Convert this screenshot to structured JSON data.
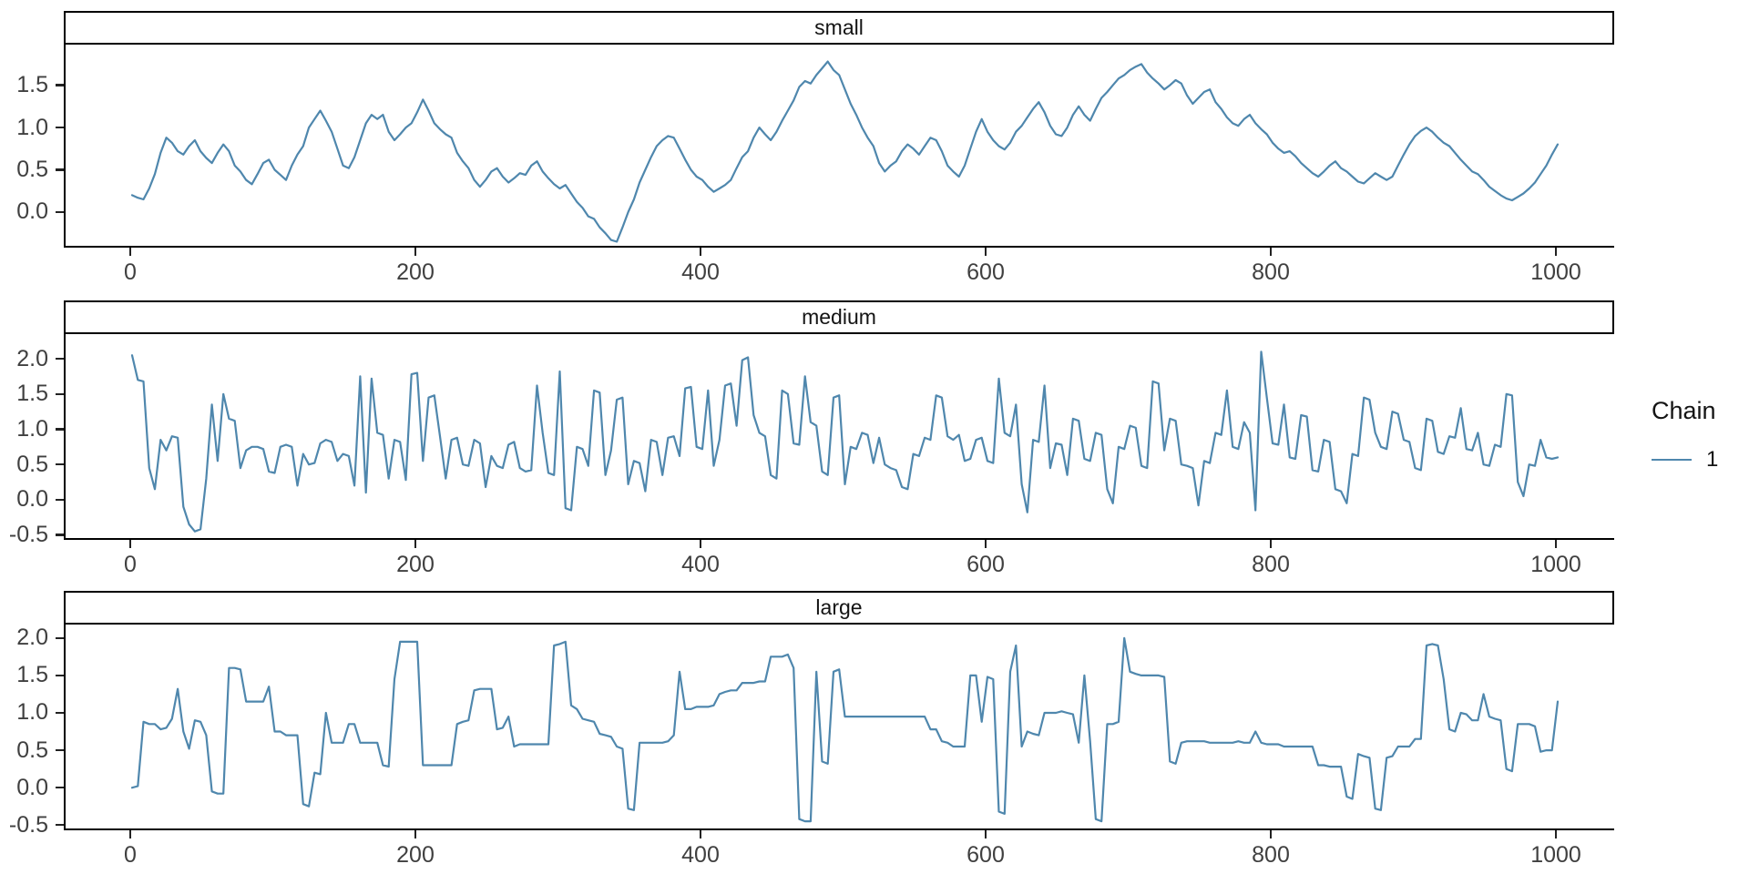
{
  "figure": {
    "legend": {
      "title": "Chain",
      "items": [
        {
          "label": "1",
          "color": "#4f87ad"
        }
      ],
      "position": "right"
    },
    "colors": {
      "line": "#4f87ad",
      "axis_line": "#000000",
      "tick_mark": "#222222",
      "tick_text": "#404040",
      "strip_text": "#141414",
      "strip_border": "#000000",
      "background": "#ffffff"
    }
  },
  "chart_data": [
    {
      "type": "line",
      "title": "small",
      "xlabel": "",
      "ylabel": "",
      "legend_entry": "1",
      "grid": false,
      "x_ticks": [
        0,
        200,
        400,
        600,
        800,
        1000
      ],
      "y_tick_labels": [
        "0.0",
        "0.5",
        "1.0",
        "1.5"
      ],
      "xlim": [
        -46.6,
        1040.9
      ],
      "ylim": [
        -0.42,
        1.98
      ],
      "series": [
        {
          "name": "1",
          "x_step": 4,
          "values": [
            0.2,
            0.17,
            0.15,
            0.28,
            0.45,
            0.7,
            0.88,
            0.82,
            0.72,
            0.68,
            0.78,
            0.85,
            0.72,
            0.64,
            0.58,
            0.7,
            0.8,
            0.72,
            0.55,
            0.48,
            0.38,
            0.33,
            0.45,
            0.58,
            0.62,
            0.5,
            0.44,
            0.38,
            0.55,
            0.68,
            0.78,
            1.0,
            1.1,
            1.2,
            1.08,
            0.95,
            0.75,
            0.55,
            0.52,
            0.65,
            0.85,
            1.05,
            1.15,
            1.1,
            1.15,
            0.95,
            0.85,
            0.92,
            1.0,
            1.05,
            1.18,
            1.33,
            1.2,
            1.05,
            0.98,
            0.92,
            0.88,
            0.7,
            0.6,
            0.52,
            0.38,
            0.3,
            0.38,
            0.48,
            0.52,
            0.42,
            0.35,
            0.4,
            0.46,
            0.44,
            0.55,
            0.6,
            0.48,
            0.4,
            0.33,
            0.28,
            0.32,
            0.22,
            0.12,
            0.05,
            -0.05,
            -0.08,
            -0.18,
            -0.25,
            -0.33,
            -0.35,
            -0.18,
            0.0,
            0.15,
            0.35,
            0.5,
            0.65,
            0.78,
            0.85,
            0.9,
            0.88,
            0.75,
            0.62,
            0.5,
            0.42,
            0.38,
            0.3,
            0.24,
            0.28,
            0.32,
            0.38,
            0.52,
            0.65,
            0.72,
            0.88,
            1.0,
            0.92,
            0.85,
            0.95,
            1.08,
            1.2,
            1.32,
            1.48,
            1.55,
            1.52,
            1.62,
            1.7,
            1.78,
            1.68,
            1.62,
            1.45,
            1.28,
            1.15,
            1.0,
            0.88,
            0.78,
            0.58,
            0.48,
            0.55,
            0.6,
            0.72,
            0.8,
            0.75,
            0.68,
            0.78,
            0.88,
            0.85,
            0.72,
            0.55,
            0.48,
            0.42,
            0.55,
            0.75,
            0.95,
            1.1,
            0.95,
            0.85,
            0.78,
            0.74,
            0.82,
            0.95,
            1.02,
            1.12,
            1.22,
            1.3,
            1.18,
            1.02,
            0.92,
            0.9,
            1.0,
            1.15,
            1.25,
            1.15,
            1.08,
            1.22,
            1.35,
            1.42,
            1.5,
            1.58,
            1.62,
            1.68,
            1.72,
            1.75,
            1.65,
            1.58,
            1.52,
            1.45,
            1.5,
            1.56,
            1.52,
            1.38,
            1.28,
            1.35,
            1.42,
            1.45,
            1.3,
            1.22,
            1.12,
            1.05,
            1.02,
            1.1,
            1.15,
            1.05,
            0.98,
            0.92,
            0.82,
            0.75,
            0.7,
            0.72,
            0.66,
            0.58,
            0.52,
            0.46,
            0.42,
            0.48,
            0.55,
            0.6,
            0.52,
            0.48,
            0.42,
            0.36,
            0.34,
            0.4,
            0.46,
            0.42,
            0.38,
            0.42,
            0.55,
            0.68,
            0.8,
            0.9,
            0.96,
            1.0,
            0.95,
            0.88,
            0.82,
            0.78,
            0.7,
            0.62,
            0.55,
            0.48,
            0.45,
            0.38,
            0.3,
            0.25,
            0.2,
            0.16,
            0.14,
            0.18,
            0.22,
            0.28,
            0.35,
            0.45,
            0.55,
            0.68,
            0.8
          ]
        }
      ]
    },
    {
      "type": "line",
      "title": "medium",
      "xlabel": "",
      "ylabel": "",
      "legend_entry": "1",
      "grid": false,
      "x_ticks": [
        0,
        200,
        400,
        600,
        800,
        1000
      ],
      "y_tick_labels": [
        "-0.5",
        "0.0",
        "0.5",
        "1.0",
        "1.5",
        "2.0"
      ],
      "xlim": [
        -46.6,
        1040.9
      ],
      "ylim": [
        -0.57,
        2.35
      ],
      "series": [
        {
          "name": "1",
          "x_step": 4,
          "values": [
            2.05,
            1.7,
            1.68,
            0.45,
            0.15,
            0.85,
            0.7,
            0.9,
            0.88,
            -0.1,
            -0.35,
            -0.45,
            -0.42,
            0.3,
            1.35,
            0.55,
            1.5,
            1.15,
            1.12,
            0.45,
            0.7,
            0.75,
            0.75,
            0.72,
            0.4,
            0.38,
            0.75,
            0.78,
            0.75,
            0.2,
            0.65,
            0.5,
            0.52,
            0.8,
            0.85,
            0.82,
            0.55,
            0.65,
            0.62,
            0.2,
            1.75,
            0.1,
            1.72,
            0.95,
            0.92,
            0.3,
            0.85,
            0.82,
            0.28,
            1.78,
            1.8,
            0.55,
            1.45,
            1.48,
            0.9,
            0.3,
            0.85,
            0.88,
            0.5,
            0.48,
            0.85,
            0.8,
            0.18,
            0.62,
            0.48,
            0.45,
            0.78,
            0.82,
            0.45,
            0.4,
            0.42,
            1.62,
            0.95,
            0.38,
            0.35,
            1.82,
            -0.12,
            -0.15,
            0.75,
            0.72,
            0.48,
            1.55,
            1.52,
            0.35,
            0.7,
            1.42,
            1.45,
            0.22,
            0.55,
            0.52,
            0.12,
            0.85,
            0.82,
            0.35,
            0.88,
            0.9,
            0.62,
            1.58,
            1.6,
            0.75,
            0.72,
            1.55,
            0.48,
            0.85,
            1.62,
            1.65,
            1.05,
            1.98,
            2.02,
            1.2,
            0.95,
            0.9,
            0.35,
            0.3,
            1.55,
            1.5,
            0.8,
            0.78,
            1.75,
            1.1,
            1.05,
            0.4,
            0.35,
            1.45,
            1.48,
            0.22,
            0.75,
            0.72,
            0.95,
            0.92,
            0.52,
            0.88,
            0.5,
            0.45,
            0.42,
            0.18,
            0.15,
            0.65,
            0.62,
            0.88,
            0.85,
            1.48,
            1.45,
            0.9,
            0.85,
            0.92,
            0.55,
            0.58,
            0.85,
            0.88,
            0.55,
            0.52,
            1.72,
            0.95,
            0.9,
            1.35,
            0.22,
            -0.18,
            0.85,
            0.82,
            1.62,
            0.45,
            0.8,
            0.78,
            0.35,
            1.15,
            1.12,
            0.58,
            0.55,
            0.95,
            0.92,
            0.15,
            -0.05,
            0.75,
            0.72,
            1.05,
            1.02,
            0.48,
            0.45,
            1.68,
            1.65,
            0.7,
            1.15,
            1.12,
            0.5,
            0.48,
            0.45,
            -0.08,
            0.55,
            0.52,
            0.95,
            0.92,
            1.55,
            0.75,
            0.72,
            1.1,
            0.95,
            -0.15,
            2.1,
            1.45,
            0.8,
            0.78,
            1.35,
            0.6,
            0.58,
            1.2,
            1.18,
            0.42,
            0.4,
            0.85,
            0.82,
            0.15,
            0.12,
            -0.05,
            0.65,
            0.62,
            1.45,
            1.42,
            0.95,
            0.75,
            0.72,
            1.25,
            1.22,
            0.85,
            0.82,
            0.45,
            0.42,
            1.15,
            1.12,
            0.68,
            0.65,
            0.9,
            0.88,
            1.3,
            0.72,
            0.7,
            0.95,
            0.5,
            0.48,
            0.78,
            0.75,
            1.5,
            1.48,
            0.25,
            0.05,
            0.5,
            0.48,
            0.85,
            0.6,
            0.58,
            0.6
          ]
        }
      ]
    },
    {
      "type": "line",
      "title": "large",
      "xlabel": "",
      "ylabel": "",
      "legend_entry": "1",
      "grid": false,
      "x_ticks": [
        0,
        200,
        400,
        600,
        800,
        1000
      ],
      "y_tick_labels": [
        "-0.5",
        "0.0",
        "0.5",
        "1.0",
        "1.5",
        "2.0"
      ],
      "xlim": [
        -46.6,
        1040.9
      ],
      "ylim": [
        -0.57,
        2.18
      ],
      "series": [
        {
          "name": "1",
          "x_step": 4,
          "values": [
            0.0,
            0.02,
            0.88,
            0.85,
            0.85,
            0.78,
            0.8,
            0.92,
            1.32,
            0.75,
            0.52,
            0.9,
            0.88,
            0.7,
            -0.05,
            -0.08,
            -0.08,
            1.6,
            1.6,
            1.58,
            1.15,
            1.15,
            1.15,
            1.15,
            1.35,
            0.75,
            0.75,
            0.7,
            0.7,
            0.7,
            -0.22,
            -0.25,
            0.2,
            0.18,
            1.0,
            0.6,
            0.6,
            0.6,
            0.85,
            0.85,
            0.6,
            0.6,
            0.6,
            0.6,
            0.3,
            0.28,
            1.45,
            1.95,
            1.95,
            1.95,
            1.95,
            0.3,
            0.3,
            0.3,
            0.3,
            0.3,
            0.3,
            0.85,
            0.88,
            0.9,
            1.3,
            1.32,
            1.32,
            1.32,
            0.78,
            0.8,
            0.95,
            0.55,
            0.58,
            0.58,
            0.58,
            0.58,
            0.58,
            0.58,
            1.9,
            1.92,
            1.95,
            1.1,
            1.05,
            0.92,
            0.9,
            0.88,
            0.72,
            0.7,
            0.68,
            0.55,
            0.52,
            -0.28,
            -0.3,
            0.6,
            0.6,
            0.6,
            0.6,
            0.6,
            0.62,
            0.7,
            1.55,
            1.05,
            1.05,
            1.08,
            1.08,
            1.08,
            1.1,
            1.25,
            1.28,
            1.3,
            1.3,
            1.4,
            1.4,
            1.4,
            1.42,
            1.42,
            1.75,
            1.75,
            1.75,
            1.78,
            1.6,
            -0.42,
            -0.45,
            -0.45,
            1.55,
            0.35,
            0.32,
            1.55,
            1.58,
            0.95,
            0.95,
            0.95,
            0.95,
            0.95,
            0.95,
            0.95,
            0.95,
            0.95,
            0.95,
            0.95,
            0.95,
            0.95,
            0.95,
            0.95,
            0.78,
            0.78,
            0.62,
            0.6,
            0.55,
            0.55,
            0.55,
            1.5,
            1.5,
            0.88,
            1.48,
            1.45,
            -0.32,
            -0.35,
            1.55,
            1.9,
            0.55,
            0.75,
            0.72,
            0.7,
            1.0,
            1.0,
            1.0,
            1.02,
            1.0,
            0.98,
            0.6,
            1.5,
            0.62,
            -0.42,
            -0.45,
            0.85,
            0.85,
            0.88,
            2.0,
            1.55,
            1.52,
            1.5,
            1.5,
            1.5,
            1.5,
            1.48,
            0.35,
            0.32,
            0.6,
            0.62,
            0.62,
            0.62,
            0.62,
            0.6,
            0.6,
            0.6,
            0.6,
            0.6,
            0.62,
            0.6,
            0.6,
            0.75,
            0.6,
            0.58,
            0.58,
            0.58,
            0.55,
            0.55,
            0.55,
            0.55,
            0.55,
            0.55,
            0.3,
            0.3,
            0.28,
            0.28,
            0.28,
            -0.12,
            -0.15,
            0.45,
            0.42,
            0.4,
            -0.28,
            -0.3,
            0.4,
            0.42,
            0.55,
            0.55,
            0.55,
            0.65,
            0.65,
            1.9,
            1.92,
            1.9,
            1.45,
            0.78,
            0.75,
            1.0,
            0.98,
            0.9,
            0.9,
            1.25,
            0.95,
            0.92,
            0.9,
            0.25,
            0.22,
            0.85,
            0.85,
            0.85,
            0.82,
            0.48,
            0.5,
            0.5,
            1.15
          ]
        }
      ]
    }
  ]
}
